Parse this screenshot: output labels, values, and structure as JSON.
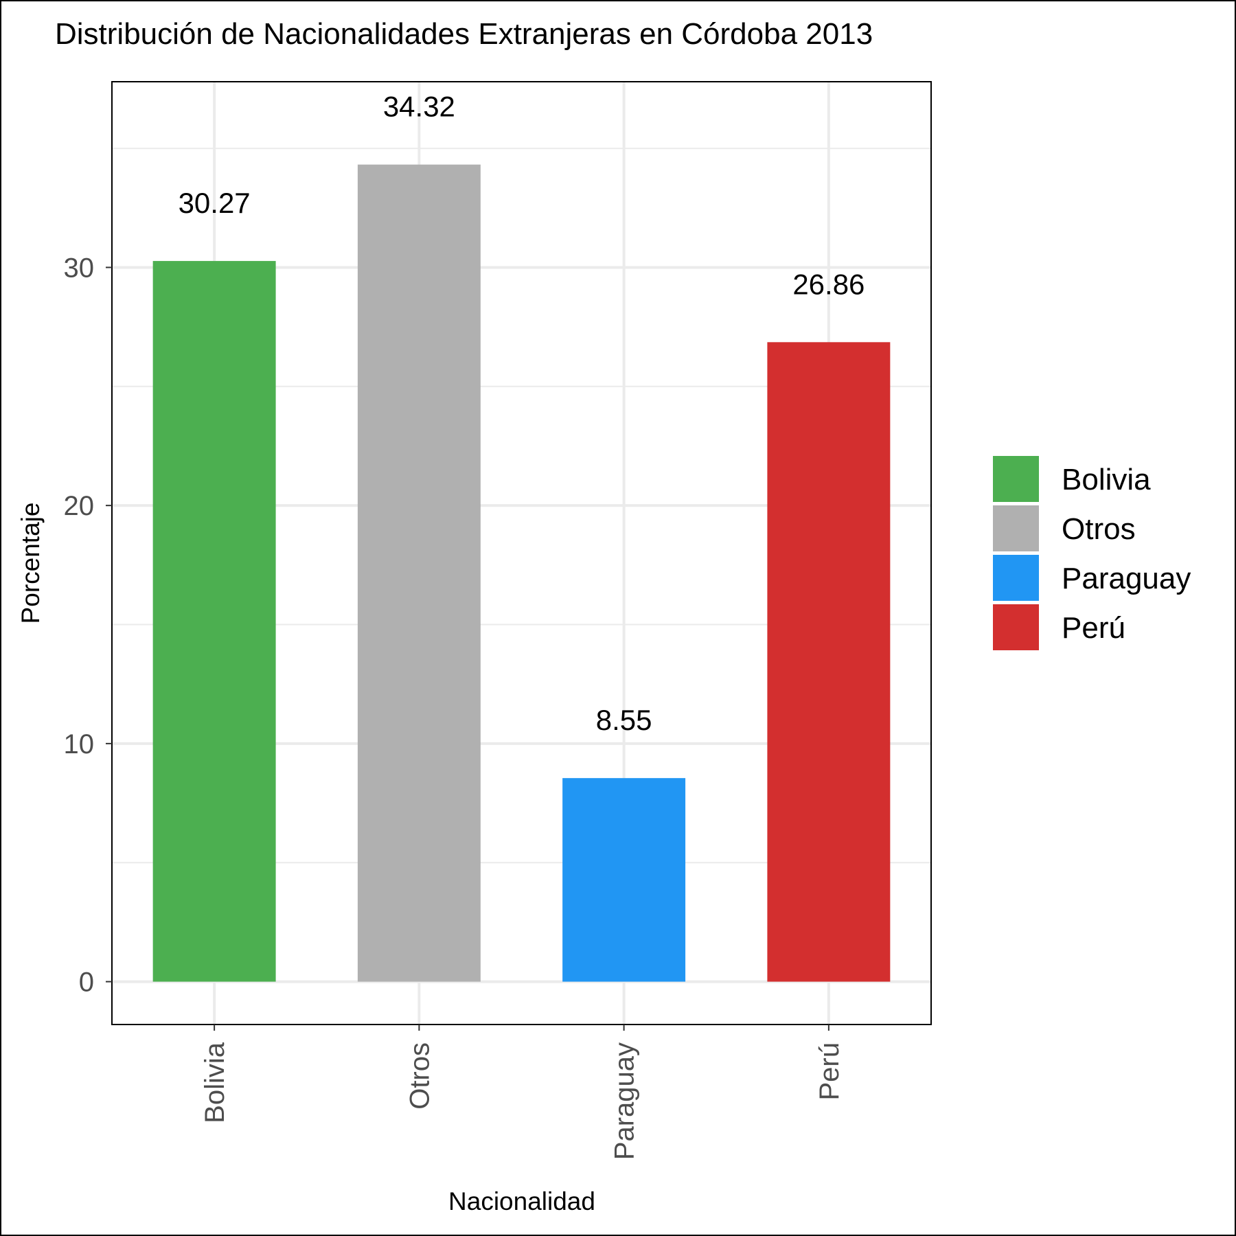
{
  "chart_data": {
    "type": "bar",
    "title": "Distribución de Nacionalidades Extranjeras en Córdoba 2013",
    "xlabel": "Nacionalidad",
    "ylabel": "Porcentaje",
    "categories": [
      "Bolivia",
      "Otros",
      "Paraguay",
      "Perú"
    ],
    "values": [
      30.27,
      34.32,
      8.55,
      26.86
    ],
    "value_labels": [
      "30.27",
      "34.32",
      "8.55",
      "26.86"
    ],
    "colors": [
      "#4caf50",
      "#b0b0b0",
      "#2196f3",
      "#d32f2f"
    ],
    "ylim": [
      -1.8,
      37.8
    ],
    "yticks": [
      0,
      10,
      20,
      30
    ],
    "ytick_labels": [
      "0",
      "10",
      "20",
      "30"
    ],
    "grid": true,
    "legend": {
      "placement": "right",
      "entries": [
        "Bolivia",
        "Otros",
        "Paraguay",
        "Perú"
      ]
    }
  }
}
